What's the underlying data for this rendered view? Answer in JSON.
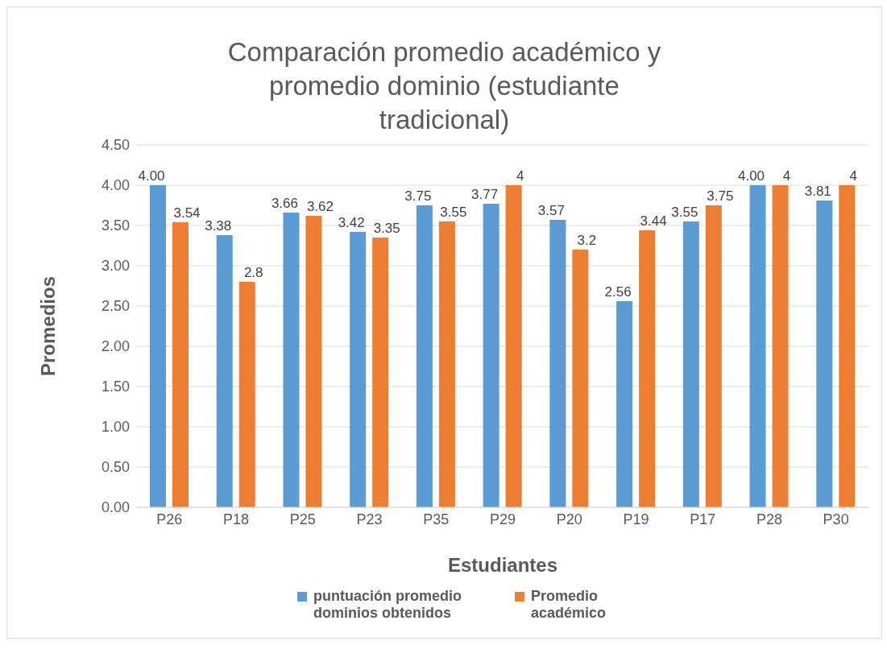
{
  "chart_data": {
    "type": "bar",
    "title": "Comparación promedio académico y promedio dominio (estudiante tradicional)",
    "xlabel": "Estudiantes",
    "ylabel": "Promedios",
    "categories": [
      "P26",
      "P18",
      "P25",
      "P23",
      "P35",
      "P29",
      "P20",
      "P19",
      "P17",
      "P28",
      "P30"
    ],
    "series": [
      {
        "name": "puntuación promedio dominios obtenidos",
        "color": "#5b9bd5",
        "values": [
          4.0,
          3.38,
          3.66,
          3.42,
          3.75,
          3.77,
          3.57,
          2.56,
          3.55,
          4.0,
          3.81
        ],
        "value_labels": [
          "4.00",
          "3.38",
          "3.66",
          "3.42",
          "3.75",
          "3.77",
          "3.57",
          "2.56",
          "3.55",
          "4.00",
          "3.81"
        ]
      },
      {
        "name": "Promedio académico",
        "color": "#ed7d31",
        "values": [
          3.54,
          2.8,
          3.62,
          3.35,
          3.55,
          4,
          3.2,
          3.44,
          3.75,
          4,
          4
        ],
        "value_labels": [
          "3.54",
          "2.8",
          "3.62",
          "3.35",
          "3.55",
          "4",
          "3.2",
          "3.44",
          "3.75",
          "4",
          "4"
        ]
      }
    ],
    "ylim": [
      0,
      4.5
    ],
    "yticks": [
      {
        "value": 0,
        "label": "0.00"
      },
      {
        "value": 0.5,
        "label": "0.50"
      },
      {
        "value": 1,
        "label": "1.00"
      },
      {
        "value": 1.5,
        "label": "1.50"
      },
      {
        "value": 2,
        "label": "2.00"
      },
      {
        "value": 2.5,
        "label": "2.50"
      },
      {
        "value": 3,
        "label": "3.00"
      },
      {
        "value": 3.5,
        "label": "3.50"
      },
      {
        "value": 4,
        "label": "4.00"
      },
      {
        "value": 4.5,
        "label": "4.50"
      }
    ],
    "grid": "y",
    "legend": "bottom"
  }
}
